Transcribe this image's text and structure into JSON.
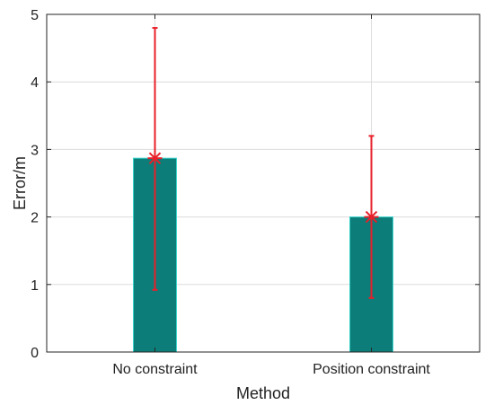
{
  "chart_data": {
    "type": "bar",
    "categories": [
      "No constraint",
      "Position constraint"
    ],
    "values": [
      2.87,
      2.0
    ],
    "error_low": [
      0.92,
      0.8
    ],
    "error_high": [
      4.8,
      3.2
    ],
    "xlabel": "Method",
    "ylabel": "Error/m",
    "ylim": [
      0,
      5
    ],
    "yticks": [
      "0",
      "1",
      "2",
      "3",
      "4",
      "5"
    ],
    "grid": true,
    "bar_color": "#0c7d78",
    "bar_edge_color": "#39d4cc",
    "errorbar_color": "#e8202a",
    "marker": "asterisk"
  }
}
